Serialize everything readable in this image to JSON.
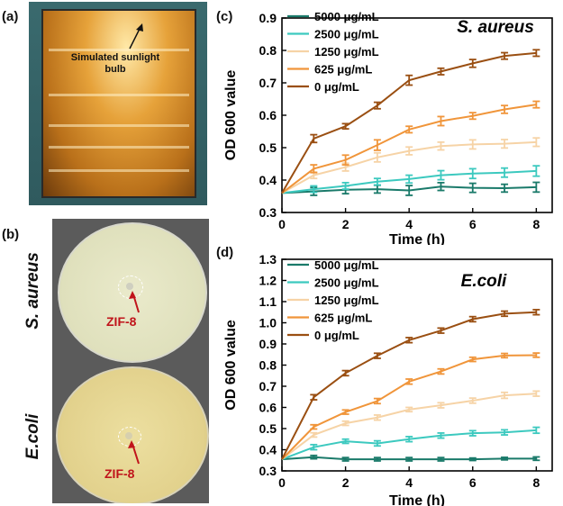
{
  "panels": {
    "a": "(a)",
    "b": "(b)",
    "c": "(c)",
    "d": "(d)"
  },
  "photo_a": {
    "annotation": "Simulated sunlight bulb"
  },
  "photo_b": {
    "top_label": "S. aureus",
    "bottom_label": "E.coli",
    "zif_top": "ZIF-8",
    "zif_bottom": "ZIF-8"
  },
  "colors": {
    "s5000": "#1a7a6a",
    "s2500": "#3cc9bf",
    "s1250": "#f6d3a6",
    "s625": "#f0953a",
    "s0": "#9a4f12"
  },
  "chart_data": [
    {
      "type": "line",
      "title": "S. aureus",
      "xlabel": "Time (h)",
      "ylabel": "OD 600 value",
      "xlim": [
        0,
        8.5
      ],
      "ylim": [
        0.3,
        0.9
      ],
      "xticks": [
        "0",
        "2",
        "4",
        "6",
        "8"
      ],
      "yticks": [
        "0.3",
        "0.4",
        "0.5",
        "0.6",
        "0.7",
        "0.8",
        "0.9"
      ],
      "legend_position": "top-left",
      "x": [
        0,
        1,
        2,
        3,
        4,
        5,
        6,
        7,
        8
      ],
      "series": [
        {
          "name": "5000 μg/mL",
          "values": [
            0.36,
            0.365,
            0.37,
            0.372,
            0.368,
            0.38,
            0.376,
            0.375,
            0.378
          ],
          "error": [
            0,
            0.012,
            0.012,
            0.012,
            0.015,
            0.012,
            0.014,
            0.012,
            0.015
          ]
        },
        {
          "name": "2500 μg/mL",
          "values": [
            0.36,
            0.372,
            0.382,
            0.395,
            0.403,
            0.415,
            0.42,
            0.423,
            0.428
          ],
          "error": [
            0,
            0.01,
            0.01,
            0.01,
            0.012,
            0.014,
            0.015,
            0.014,
            0.016
          ]
        },
        {
          "name": "1250 μg/mL",
          "values": [
            0.36,
            0.415,
            0.44,
            0.47,
            0.49,
            0.505,
            0.51,
            0.512,
            0.517
          ],
          "error": [
            0,
            0.01,
            0.012,
            0.014,
            0.012,
            0.012,
            0.014,
            0.013,
            0.013
          ]
        },
        {
          "name": "625 μg/mL",
          "values": [
            0.36,
            0.435,
            0.462,
            0.508,
            0.556,
            0.582,
            0.598,
            0.618,
            0.633
          ],
          "error": [
            0,
            0.012,
            0.015,
            0.016,
            0.01,
            0.014,
            0.01,
            0.012,
            0.01
          ]
        },
        {
          "name": "0 μg/mL",
          "values": [
            0.36,
            0.528,
            0.566,
            0.63,
            0.708,
            0.735,
            0.76,
            0.783,
            0.792
          ],
          "error": [
            0,
            0.012,
            0.008,
            0.01,
            0.015,
            0.01,
            0.012,
            0.01,
            0.01
          ]
        }
      ]
    },
    {
      "type": "line",
      "title": "E.coli",
      "xlabel": "Time (h)",
      "ylabel": "OD 600 value",
      "xlim": [
        0,
        8.5
      ],
      "ylim": [
        0.3,
        1.3
      ],
      "xticks": [
        "0",
        "2",
        "4",
        "6",
        "8"
      ],
      "yticks": [
        "0.3",
        "0.4",
        "0.5",
        "0.6",
        "0.7",
        "0.8",
        "0.9",
        "1.0",
        "1.1",
        "1.2",
        "1.3"
      ],
      "legend_position": "top-left",
      "x": [
        0,
        1,
        2,
        3,
        4,
        5,
        6,
        7,
        8
      ],
      "series": [
        {
          "name": "5000 μg/mL",
          "values": [
            0.355,
            0.365,
            0.355,
            0.355,
            0.355,
            0.355,
            0.355,
            0.358,
            0.358
          ],
          "error": [
            0,
            0.008,
            0.008,
            0.008,
            0.008,
            0.008,
            0.006,
            0.006,
            0.008
          ]
        },
        {
          "name": "2500 μg/mL",
          "values": [
            0.355,
            0.412,
            0.44,
            0.43,
            0.45,
            0.467,
            0.478,
            0.482,
            0.492
          ],
          "error": [
            0,
            0.012,
            0.01,
            0.012,
            0.012,
            0.012,
            0.012,
            0.012,
            0.014
          ]
        },
        {
          "name": "1250 μg/mL",
          "values": [
            0.355,
            0.47,
            0.525,
            0.552,
            0.59,
            0.61,
            0.632,
            0.657,
            0.665
          ],
          "error": [
            0,
            0.01,
            0.01,
            0.012,
            0.01,
            0.012,
            0.012,
            0.014,
            0.012
          ]
        },
        {
          "name": "625 μg/mL",
          "values": [
            0.355,
            0.508,
            0.578,
            0.63,
            0.722,
            0.77,
            0.827,
            0.845,
            0.847
          ],
          "error": [
            0,
            0.01,
            0.01,
            0.012,
            0.012,
            0.012,
            0.01,
            0.01,
            0.01
          ]
        },
        {
          "name": "0 μg/mL",
          "values": [
            0.355,
            0.648,
            0.762,
            0.844,
            0.918,
            0.963,
            1.017,
            1.043,
            1.05
          ],
          "error": [
            0,
            0.012,
            0.012,
            0.012,
            0.012,
            0.012,
            0.012,
            0.012,
            0.012
          ]
        }
      ]
    }
  ]
}
